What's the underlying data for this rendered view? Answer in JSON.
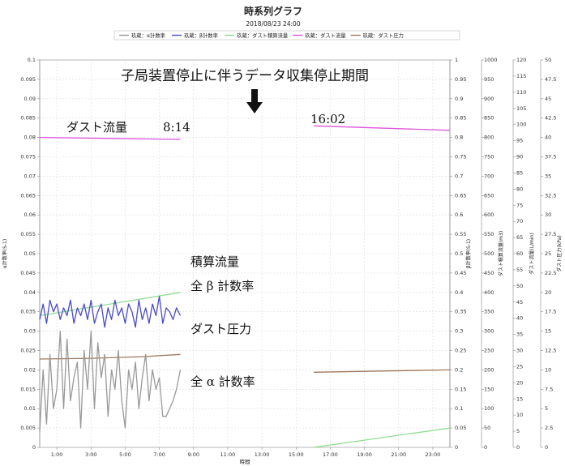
{
  "chart_data": {
    "type": "line",
    "title": "時系列グラフ",
    "subtitle": "2018/08/23 24:00",
    "xlabel": "時間",
    "x_ticks": [
      "1:00",
      "3:00",
      "5:00",
      "7:00",
      "9:00",
      "11:00",
      "13:00",
      "15:00",
      "17:00",
      "19:00",
      "21:00",
      "23:00"
    ],
    "xlim": [
      0,
      24
    ],
    "legend": [
      {
        "label": "玖蔵：α計数率",
        "color": "#999999"
      },
      {
        "label": "玖蔵：β計数率",
        "color": "#4b4bc8"
      },
      {
        "label": "玖蔵：ダスト積算流量",
        "color": "#8fdd8f"
      },
      {
        "label": "玖蔵：ダスト流量",
        "color": "#dd55dd"
      },
      {
        "label": "玖蔵：ダスト圧力",
        "color": "#a0785a"
      }
    ],
    "axes": {
      "left": {
        "label": "α計数率(S-1)",
        "ticks": [
          "0",
          "0.005",
          "0.01",
          "0.015",
          "0.02",
          "0.025",
          "0.03",
          "0.035",
          "0.04",
          "0.045",
          "0.05",
          "0.055",
          "0.06",
          "0.065",
          "0.07",
          "0.075",
          "0.08",
          "0.085",
          "0.09",
          "0.095",
          "0.1"
        ]
      },
      "right1": {
        "label": "β計数率(S-1)",
        "ticks": [
          "0",
          "0.05",
          "0.1",
          "0.15",
          "0.2",
          "0.25",
          "0.3",
          "0.35",
          "0.4",
          "0.45",
          "0.5",
          "0.55",
          "0.6",
          "0.65",
          "0.7",
          "0.75",
          "0.8",
          "0.85",
          "0.9",
          "0.95",
          "1"
        ]
      },
      "right2": {
        "label": "ダスト積算流量(m3)",
        "ticks": [
          "0",
          "50",
          "100",
          "150",
          "200",
          "250",
          "300",
          "350",
          "400",
          "450",
          "500",
          "550",
          "600",
          "650",
          "700",
          "750",
          "800",
          "850",
          "900",
          "950",
          "1000"
        ]
      },
      "right3": {
        "label": "ダスト流量(L/min)",
        "ticks": [
          "0",
          "5",
          "10",
          "15",
          "20",
          "25",
          "30",
          "35",
          "40",
          "45",
          "50",
          "55",
          "60",
          "65",
          "70",
          "75",
          "80",
          "85",
          "90",
          "95",
          "100",
          "105",
          "110",
          "115",
          "120"
        ]
      },
      "right4": {
        "label": "ダスト圧力(kPa)",
        "ticks": [
          "0",
          "2.5",
          "5",
          "7.5",
          "10",
          "12.5",
          "15",
          "17.5",
          "20",
          "22.5",
          "25",
          "27.5",
          "30",
          "32.5",
          "35",
          "37.5",
          "40",
          "42.5",
          "45",
          "47.5",
          "50"
        ]
      }
    },
    "series": [
      {
        "name": "玖蔵：ダスト流量",
        "axis": "right3",
        "color": "#dd55dd",
        "segments": [
          {
            "x": [
              0,
              8.23
            ],
            "y": [
              96,
              95.4
            ]
          },
          {
            "x": [
              16.03,
              24
            ],
            "y": [
              99.6,
              98.2
            ]
          }
        ]
      },
      {
        "name": "玖蔵：ダスト積算流量",
        "axis": "right2",
        "color": "#8fdd8f",
        "segments": [
          {
            "x": [
              0,
              8.23
            ],
            "y": [
              340,
              400
            ]
          },
          {
            "x": [
              16.03,
              24
            ],
            "y": [
              0,
              50
            ]
          }
        ]
      },
      {
        "name": "玖蔵：ダスト圧力",
        "axis": "right4",
        "color": "#a0785a",
        "segments": [
          {
            "x": [
              0,
              3,
              6,
              8.23
            ],
            "y": [
              11.4,
              11.5,
              11.7,
              12
            ]
          },
          {
            "x": [
              16.03,
              20,
              24
            ],
            "y": [
              9.7,
              9.85,
              10
            ]
          }
        ]
      },
      {
        "name": "玖蔵：β計数率",
        "axis": "right1",
        "color": "#4b4bc8",
        "segments": [
          {
            "x": [
              0,
              0.2,
              0.4,
              0.6,
              0.8,
              1.0,
              1.2,
              1.4,
              1.6,
              1.8,
              2.0,
              2.2,
              2.4,
              2.6,
              2.8,
              3.0,
              3.2,
              3.4,
              3.6,
              3.8,
              4.0,
              4.2,
              4.4,
              4.6,
              4.8,
              5.0,
              5.2,
              5.4,
              5.6,
              5.8,
              6.0,
              6.2,
              6.4,
              6.6,
              6.8,
              7.0,
              7.2,
              7.4,
              7.6,
              7.8,
              8.0,
              8.23
            ],
            "y": [
              0.33,
              0.37,
              0.32,
              0.38,
              0.35,
              0.37,
              0.33,
              0.36,
              0.34,
              0.38,
              0.32,
              0.36,
              0.34,
              0.37,
              0.33,
              0.38,
              0.32,
              0.35,
              0.37,
              0.31,
              0.36,
              0.33,
              0.38,
              0.34,
              0.36,
              0.32,
              0.37,
              0.35,
              0.31,
              0.38,
              0.33,
              0.36,
              0.32,
              0.37,
              0.34,
              0.39,
              0.32,
              0.36,
              0.35,
              0.33,
              0.36,
              0.34
            ]
          }
        ]
      },
      {
        "name": "玖蔵：α計数率",
        "axis": "left",
        "color": "#999999",
        "segments": [
          {
            "x": [
              0,
              0.2,
              0.4,
              0.6,
              0.8,
              1.0,
              1.2,
              1.4,
              1.6,
              1.8,
              2.0,
              2.2,
              2.4,
              2.6,
              2.8,
              3.0,
              3.2,
              3.4,
              3.6,
              3.8,
              4.0,
              4.2,
              4.4,
              4.6,
              4.8,
              5.0,
              5.2,
              5.4,
              5.6,
              5.8,
              6.0,
              6.2,
              6.4,
              6.6,
              6.8,
              7.0,
              7.2,
              7.4,
              7.6,
              7.8,
              8.0,
              8.23
            ],
            "y": [
              0.004,
              0.02,
              0.006,
              0.024,
              0.01,
              0.015,
              0.03,
              0.01,
              0.028,
              0.012,
              0.018,
              0.022,
              0.005,
              0.025,
              0.015,
              0.03,
              0.01,
              0.027,
              0.018,
              0.024,
              0.008,
              0.02,
              0.015,
              0.025,
              0.012,
              0.005,
              0.02,
              0.015,
              0.022,
              0.01,
              0.018,
              0.024,
              0.012,
              0.02,
              0.015,
              0.018,
              0.008,
              0.008,
              0.01,
              0.012,
              0.015,
              0.02
            ]
          }
        ]
      }
    ],
    "annotations": {
      "gap_label": "子局装置停止に伴うデータ収集停止期間",
      "flow_label": "ダスト流量",
      "stop_time": "8:14",
      "resume_time": "16:02",
      "integrated_label": "積算流量",
      "beta_label": "全 β 計数率",
      "pressure_label": "ダスト圧力",
      "alpha_label": "全 α 計数率"
    }
  }
}
